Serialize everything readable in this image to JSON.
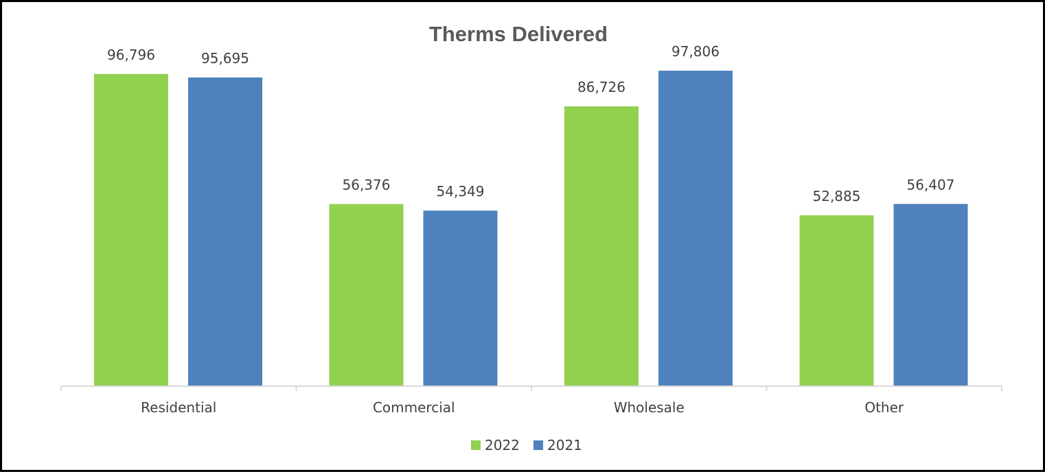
{
  "chart_data": {
    "type": "bar",
    "title": "Therms Delivered",
    "xlabel": "",
    "ylabel": "",
    "ylim": [
      0,
      105000
    ],
    "grid": false,
    "legend_position": "bottom",
    "categories": [
      "Residential",
      "Commercial",
      "Wholesale",
      "Other"
    ],
    "series": [
      {
        "name": "2022",
        "color": "#92D050",
        "values": [
          96796,
          56376,
          86726,
          52885
        ],
        "labels": [
          "96,796",
          "56,376",
          "86,726",
          "52,885"
        ]
      },
      {
        "name": "2021",
        "color": "#4F81BD",
        "values": [
          95695,
          54349,
          97806,
          56407
        ],
        "labels": [
          "95,695",
          "54,349",
          "97,806",
          "56,407"
        ]
      }
    ]
  }
}
